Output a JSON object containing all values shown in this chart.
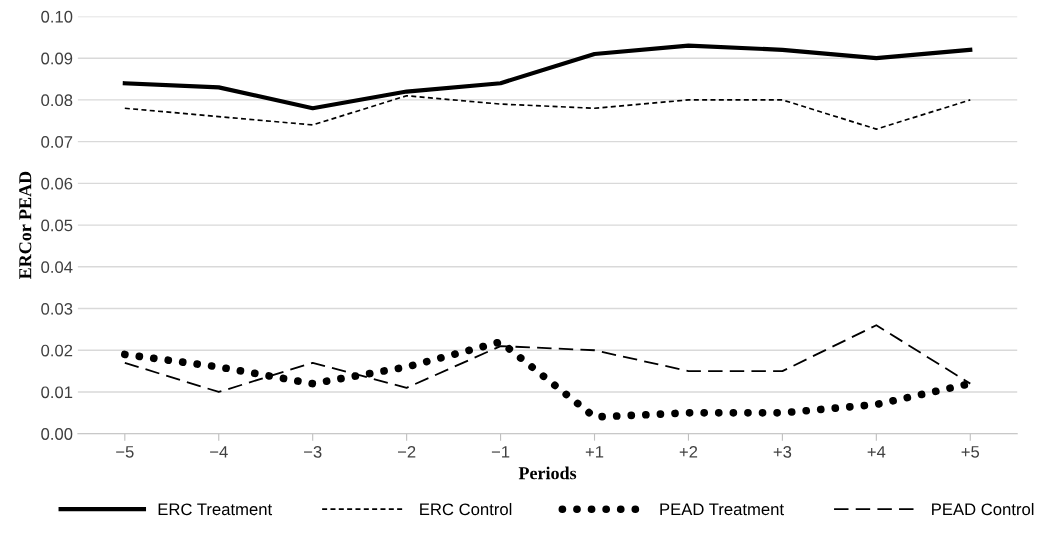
{
  "chart_data": {
    "type": "line",
    "xlabel": "Periods",
    "ylabel": "ERCor PEAD",
    "categories": [
      "−5",
      "−4",
      "−3",
      "−2",
      "−1",
      "+1",
      "+2",
      "+3",
      "+4",
      "+5"
    ],
    "ylim": [
      0,
      0.1
    ],
    "yticks": [
      {
        "value": 0,
        "label": "0.00"
      },
      {
        "value": 0.01,
        "label": "0.01"
      },
      {
        "value": 0.02,
        "label": "0.02"
      },
      {
        "value": 0.03,
        "label": "0.03"
      },
      {
        "value": 0.04,
        "label": "0.04"
      },
      {
        "value": 0.05,
        "label": "0.05"
      },
      {
        "value": 0.06,
        "label": "0.06"
      },
      {
        "value": 0.07,
        "label": "0.07"
      },
      {
        "value": 0.08,
        "label": "0.08"
      },
      {
        "value": 0.09,
        "label": "0.09"
      },
      {
        "value": 0.1,
        "label": "0.10"
      }
    ],
    "grid": "y",
    "legend": "bottom",
    "marker": "none",
    "series": [
      {
        "name": "ERC Treatment",
        "color": "#000000",
        "line_style": "solid",
        "values": [
          0.084,
          0.083,
          0.078,
          0.082,
          0.084,
          0.091,
          0.093,
          0.092,
          0.09,
          0.092
        ]
      },
      {
        "name": "ERC Control",
        "color": "#000000",
        "line_style": "dashed",
        "values": [
          0.078,
          0.076,
          0.074,
          0.081,
          0.079,
          0.078,
          0.08,
          0.08,
          0.073,
          0.08
        ]
      },
      {
        "name": "PEAD Treatment",
        "color": "#000000",
        "line_style": "dotted",
        "values": [
          0.019,
          0.016,
          0.012,
          0.016,
          0.022,
          0.004,
          0.005,
          0.005,
          0.007,
          0.012
        ]
      },
      {
        "name": "PEAD Control",
        "color": "#000000",
        "line_style": "longdash",
        "values": [
          0.017,
          0.01,
          0.017,
          0.011,
          0.021,
          0.02,
          0.015,
          0.015,
          0.026,
          0.012
        ]
      }
    ]
  }
}
